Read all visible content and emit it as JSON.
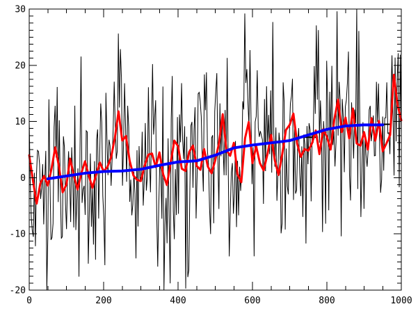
{
  "window": {
    "background": "#ffffff",
    "title": ""
  },
  "chart_data": {
    "type": "line",
    "title": "",
    "subtitle": "",
    "xlabel": "",
    "ylabel": "",
    "xlim": [
      0,
      1000
    ],
    "ylim": [
      -20,
      30
    ],
    "grid": false,
    "legend": null,
    "background_color": "#ffffff",
    "axis_color": "#000000",
    "x_ticks": {
      "major": [
        0,
        200,
        400,
        600,
        800,
        1000
      ],
      "labels": [
        "0",
        "200",
        "400",
        "600",
        "800",
        "1000"
      ],
      "minor_step": 50
    },
    "y_ticks": {
      "major": [
        -20,
        -10,
        0,
        10,
        20,
        30
      ],
      "labels": [
        "-20",
        "-10",
        "0",
        "10",
        "20",
        "30"
      ],
      "minor_step": 1.25
    },
    "series": [
      {
        "name": "raw-noisy-data",
        "kind": "noise",
        "color": "#000000",
        "width": 1,
        "points_n": 360,
        "noise_sigma": 9,
        "seed": 1337,
        "center_on": "smoothed-data",
        "clip_to_ylim": true
      },
      {
        "name": "smoothed-data",
        "kind": "line",
        "color": "#ff0000",
        "width": 3,
        "x_start": 0,
        "x_step": 10,
        "values": [
          4.0,
          -0.5,
          -4.6,
          -1.0,
          0.3,
          -1.4,
          1.6,
          5.4,
          2.0,
          -2.6,
          -1.2,
          3.4,
          0.4,
          -2.1,
          0.8,
          2.9,
          0.4,
          -1.8,
          0.6,
          2.7,
          1.1,
          1.9,
          3.6,
          7.0,
          11.8,
          6.6,
          7.4,
          3.0,
          0.4,
          -0.4,
          -0.6,
          2.1,
          4.1,
          4.3,
          1.9,
          4.5,
          0.6,
          -1.3,
          2.6,
          6.6,
          5.6,
          1.6,
          1.2,
          4.6,
          5.7,
          2.1,
          1.4,
          5.1,
          2.0,
          0.8,
          3.1,
          6.1,
          11.3,
          4.9,
          3.9,
          6.2,
          0.6,
          -0.8,
          7.0,
          9.9,
          2.6,
          5.6,
          2.6,
          1.3,
          4.1,
          7.6,
          3.1,
          0.5,
          4.2,
          8.5,
          9.4,
          11.4,
          6.1,
          3.7,
          5.1,
          4.8,
          6.1,
          8.4,
          4.2,
          8.6,
          7.3,
          5.0,
          10.4,
          13.9,
          8.1,
          10.7,
          7.0,
          12.3,
          6.1,
          5.7,
          8.1,
          5.0,
          10.6,
          6.6,
          10.1,
          4.7,
          6.1,
          7.6,
          18.3,
          12.9,
          10.2
        ]
      },
      {
        "name": "trend-line",
        "kind": "line",
        "color": "#0000ff",
        "width": 4,
        "x_start": 50,
        "x_step": 50,
        "values": [
          -0.2,
          0.3,
          0.8,
          1.1,
          1.2,
          1.5,
          2.2,
          2.8,
          3.0,
          4.0,
          5.3,
          5.8,
          6.2,
          6.6,
          7.6,
          8.6,
          9.2,
          9.4,
          9.4
        ]
      }
    ],
    "extra_segments": [
      {
        "color": "#000000",
        "width": 2,
        "y": 7.2,
        "x1": 728,
        "x2": 776
      },
      {
        "color": "#000000",
        "width": 2,
        "y": 9.5,
        "x1": 930,
        "x2": 972
      }
    ]
  }
}
